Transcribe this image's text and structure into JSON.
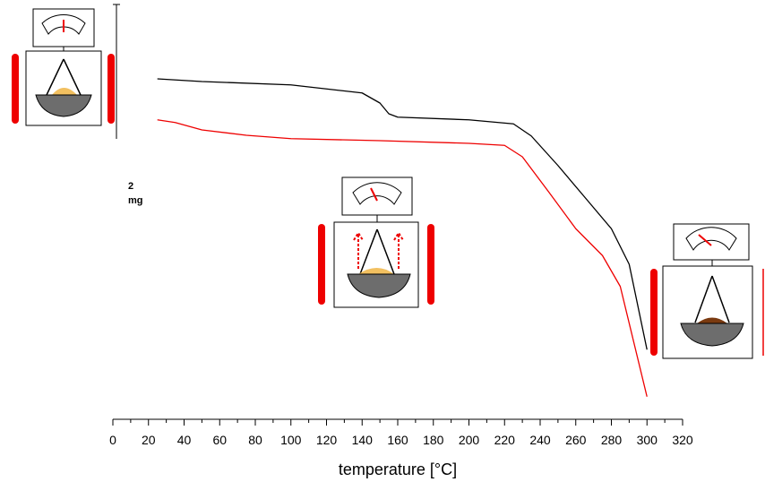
{
  "chart_data": {
    "type": "line",
    "x_label": "temperature [°C]",
    "xlim": [
      0,
      320
    ],
    "xticks": [
      0,
      20,
      40,
      60,
      80,
      100,
      120,
      140,
      160,
      180,
      200,
      220,
      240,
      260,
      280,
      300,
      320
    ],
    "ylim": [
      -4.8,
      0.64
    ],
    "scale_bar": {
      "value": 2,
      "label": "mg"
    },
    "series": [
      {
        "color": "#000000",
        "x": [
          25,
          50,
          100,
          140,
          150,
          155,
          160,
          200,
          225,
          235,
          250,
          265,
          280,
          290,
          300
        ],
        "values": [
          0,
          -0.04,
          -0.09,
          -0.21,
          -0.36,
          -0.52,
          -0.57,
          -0.61,
          -0.67,
          -0.85,
          -1.29,
          -1.76,
          -2.23,
          -2.76,
          -4.03
        ]
      },
      {
        "color": "#ee0000",
        "x": [
          25,
          35,
          50,
          75,
          100,
          150,
          200,
          220,
          230,
          245,
          260,
          275,
          285,
          300
        ],
        "values": [
          -0.61,
          -0.65,
          -0.76,
          -0.84,
          -0.89,
          -0.92,
          -0.96,
          -0.99,
          -1.16,
          -1.69,
          -2.23,
          -2.63,
          -3.09,
          -4.73
        ]
      }
    ]
  }
}
